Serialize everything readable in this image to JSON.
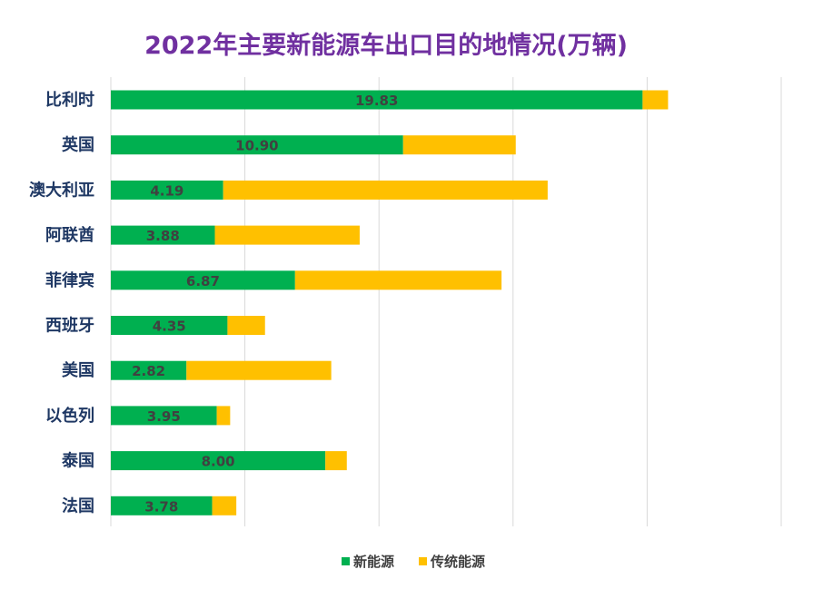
{
  "chart_data": {
    "type": "bar",
    "orientation": "horizontal",
    "stacked": true,
    "title": "2022年主要新能源车出口目的地情况(万辆)",
    "categories": [
      "比利时",
      "英国",
      "澳大利亚",
      "阿联酋",
      "菲律宾",
      "西班牙",
      "美国",
      "以色列",
      "泰国",
      "法国"
    ],
    "series": [
      {
        "name": "新能源",
        "color": "#00b050",
        "values": [
          19.83,
          10.9,
          4.19,
          3.88,
          6.87,
          4.35,
          2.82,
          3.95,
          8.0,
          3.78
        ],
        "labels": [
          "19.83",
          "10.90",
          "4.19",
          "3.88",
          "6.87",
          "4.35",
          "2.82",
          "3.95",
          "8.00",
          "3.78"
        ]
      },
      {
        "name": "传统能源",
        "color": "#ffc000",
        "values": [
          0.95,
          4.2,
          12.1,
          5.4,
          7.7,
          1.4,
          5.4,
          0.5,
          0.8,
          0.9
        ]
      }
    ],
    "xlim": [
      0,
      25
    ],
    "x_grid_step": 5,
    "grid": true,
    "legend": "bottom-center"
  }
}
